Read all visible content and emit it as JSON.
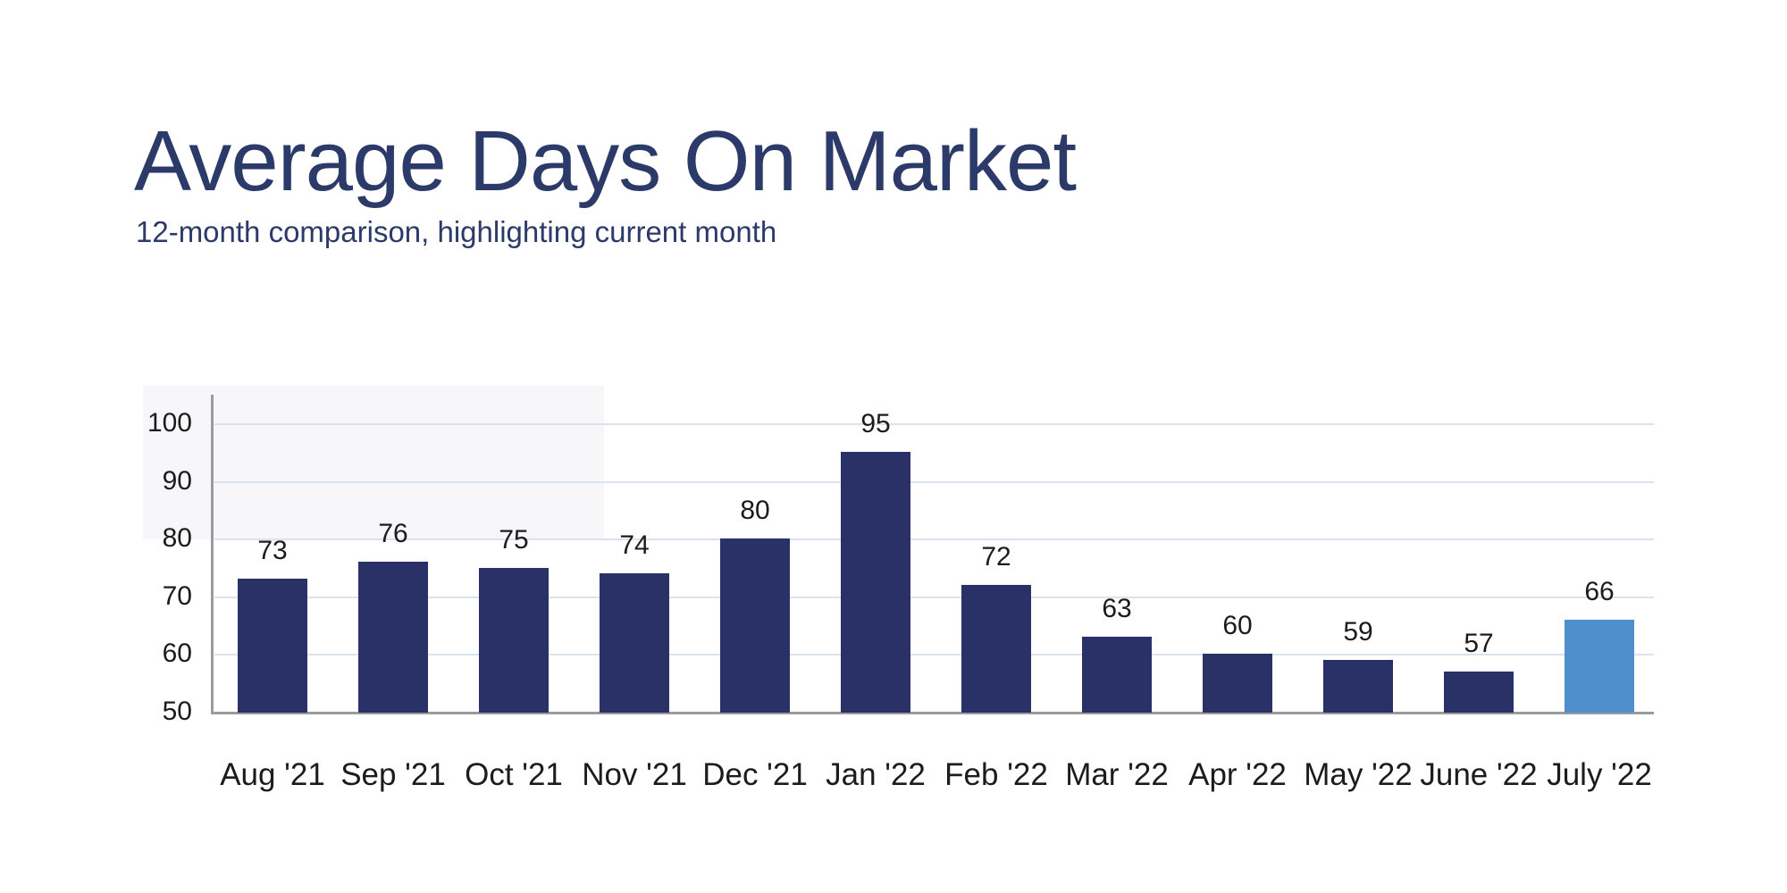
{
  "header": {
    "title": "Average Days On Market",
    "subtitle": "12-month comparison, highlighting current month"
  },
  "chart_data": {
    "type": "bar",
    "title": "Average Days On Market",
    "subtitle": "12-month comparison, highlighting current month",
    "categories": [
      "Aug '21",
      "Sep '21",
      "Oct '21",
      "Nov '21",
      "Dec '21",
      "Jan '22",
      "Feb '22",
      "Mar '22",
      "Apr '22",
      "May '22",
      "June '22",
      "July '22"
    ],
    "values": [
      73,
      76,
      75,
      74,
      80,
      95,
      72,
      63,
      60,
      59,
      57,
      66
    ],
    "data_labels_shown": true,
    "highlight_index": 11,
    "highlight_meaning": "current month",
    "xlabel": "",
    "ylabel": "",
    "yticks": [
      50,
      60,
      70,
      80,
      90,
      100
    ],
    "ylim": [
      50,
      105
    ],
    "grid": true,
    "legend": "none",
    "colors": {
      "bar": "#2a3166",
      "highlight_bar": "#4f8fcb",
      "title_text": "#2b3a69",
      "axis_label_text": "#1c1c1c",
      "gridline": "#dce3f0",
      "axis_line": "#9b9b9b",
      "background": "#ffffff"
    }
  }
}
